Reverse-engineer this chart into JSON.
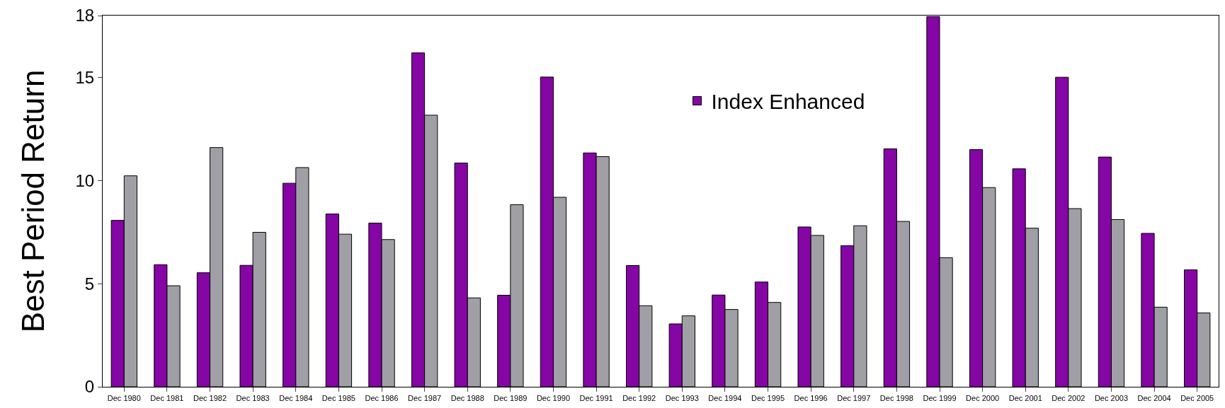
{
  "chart_data": {
    "type": "bar",
    "ylabel": "Best Period Return",
    "categories": [
      "Dec 1980",
      "Dec 1981",
      "Dec 1982",
      "Dec 1983",
      "Dec 1984",
      "Dec 1985",
      "Dec 1986",
      "Dec 1987",
      "Dec 1988",
      "Dec 1989",
      "Dec 1990",
      "Dec 1991",
      "Dec 1992",
      "Dec 1993",
      "Dec 1994",
      "Dec 1995",
      "Dec 1996",
      "Dec 1997",
      "Dec 1998",
      "Dec 1999",
      "Dec 2000",
      "Dec 2001",
      "Dec 2002",
      "Dec 2003",
      "Dec 2004",
      "Dec 2005"
    ],
    "series": [
      {
        "name": "Index Enhanced",
        "color": "#8505a5",
        "values": [
          8.07,
          5.92,
          5.53,
          5.89,
          9.87,
          8.38,
          7.94,
          16.19,
          10.85,
          4.44,
          15.02,
          11.34,
          5.88,
          3.05,
          4.45,
          5.08,
          7.75,
          6.84,
          11.54,
          17.95,
          11.5,
          10.57,
          15.01,
          11.14,
          7.44,
          5.67
        ]
      },
      {
        "color": "#a09fa5",
        "values": [
          10.23,
          4.9,
          11.6,
          7.49,
          10.63,
          7.4,
          7.14,
          13.17,
          4.31,
          8.83,
          9.19,
          11.16,
          3.93,
          3.44,
          3.75,
          4.09,
          7.34,
          7.81,
          8.02,
          6.26,
          9.66,
          7.69,
          8.64,
          8.11,
          3.86,
          3.58
        ]
      }
    ],
    "ylim": [
      0,
      18
    ],
    "yticks": [
      0,
      5,
      10,
      15,
      18
    ],
    "legend": "top"
  }
}
